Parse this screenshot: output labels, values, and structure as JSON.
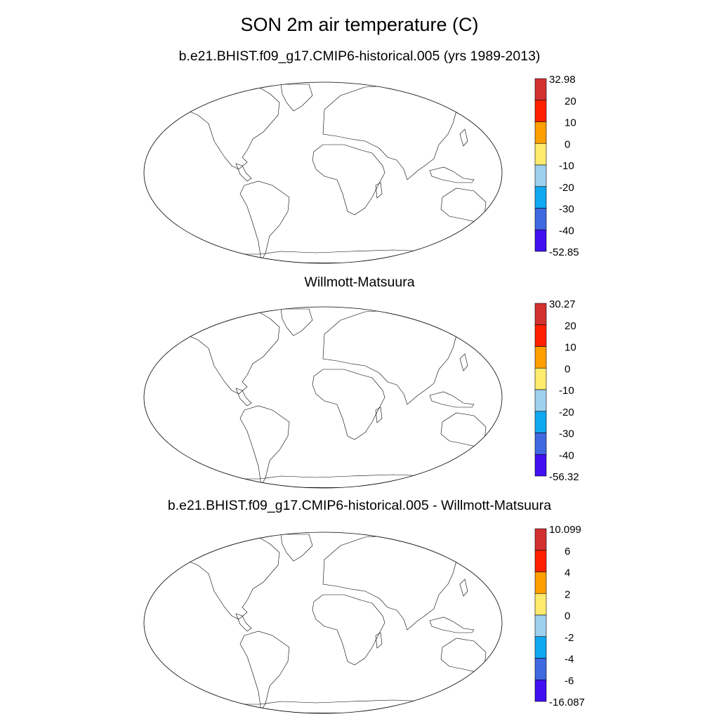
{
  "title": "SON 2m air temperature (C)",
  "panels": [
    {
      "subtitle": "b.e21.BHIST.f09_g17.CMIP6-historical.005 (yrs 1989-2013)",
      "colorbar": {
        "labels": [
          "32.98",
          "20",
          "10",
          "0",
          "-10",
          "-20",
          "-30",
          "-40",
          "-52.85"
        ],
        "colors": [
          "#d33030",
          "#ff2000",
          "#ff9f00",
          "#ffeb6e",
          "#9fd0ee",
          "#10a8f0",
          "#4068e0",
          "#4010f0"
        ]
      }
    },
    {
      "subtitle": "Willmott-Matsuura",
      "colorbar": {
        "labels": [
          "30.27",
          "20",
          "10",
          "0",
          "-10",
          "-20",
          "-30",
          "-40",
          "-56.32"
        ],
        "colors": [
          "#d33030",
          "#ff2000",
          "#ff9f00",
          "#ffeb6e",
          "#9fd0ee",
          "#10a8f0",
          "#4068e0",
          "#4010f0"
        ]
      }
    },
    {
      "subtitle": "b.e21.BHIST.f09_g17.CMIP6-historical.005 - Willmott-Matsuura",
      "colorbar": {
        "labels": [
          "10.099",
          "6",
          "4",
          "2",
          "0",
          "-2",
          "-4",
          "-6",
          "-16.087"
        ],
        "colors": [
          "#d33030",
          "#ff2000",
          "#ff9f00",
          "#ffeb6e",
          "#9fd0ee",
          "#10a8f0",
          "#4068e0",
          "#4010f0"
        ]
      }
    }
  ]
}
